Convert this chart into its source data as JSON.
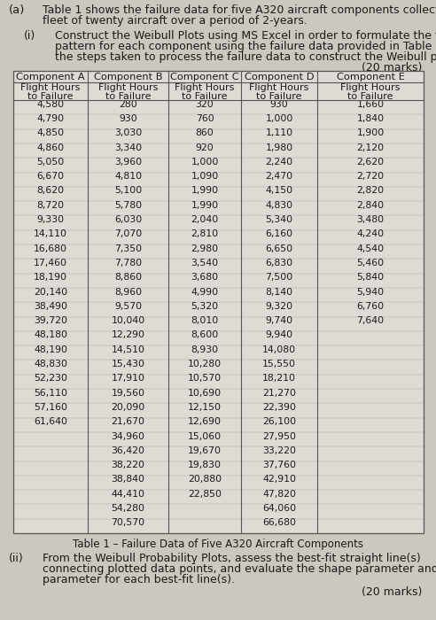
{
  "title_a": "(a)",
  "text_a1": "Table 1 shows the failure data for five A320 aircraft components collected from a",
  "text_a2": "fleet of twenty aircraft over a period of 2-years.",
  "sub_i": "(i)",
  "text_i1": "Construct the Weibull Plots using MS Excel in order to formulate the failure",
  "text_i2": "pattern for each component using the failure data provided in Table 1. Outline",
  "text_i3": "the steps taken to process the failure data to construct the Weibull plots.",
  "marks_i": "(20 marks)",
  "sub_ii": "(ii)",
  "text_ii1": "From the Weibull Probability Plots, assess the best-fit straight line(s)",
  "text_ii2": "connecting plotted data points, and evaluate the shape parameter and scale",
  "text_ii3": "parameter for each best-fit line(s).",
  "marks_ii": "(20 marks)",
  "table_caption": "Table 1 – Failure Data of Five A320 Aircraft Components",
  "col_headers": [
    "Component A",
    "Component B",
    "Component C",
    "Component D",
    "Component E"
  ],
  "col_A": [
    4580,
    4790,
    4850,
    4860,
    5050,
    6670,
    8620,
    8720,
    9330,
    14110,
    16680,
    17460,
    18190,
    20140,
    38490,
    39720,
    48180,
    48190,
    48830,
    52230,
    56110,
    57160,
    61640
  ],
  "col_B": [
    280,
    930,
    3030,
    3340,
    3960,
    4810,
    5100,
    5780,
    6030,
    7070,
    7350,
    7780,
    8860,
    8960,
    9570,
    10040,
    12290,
    14510,
    15430,
    17910,
    19560,
    20090,
    21670,
    34960,
    36420,
    38220,
    38840,
    44410,
    54280,
    70570
  ],
  "col_C": [
    320,
    760,
    860,
    920,
    1000,
    1090,
    1990,
    1990,
    2040,
    2810,
    2980,
    3540,
    3680,
    4990,
    5320,
    8010,
    8600,
    8930,
    10280,
    10570,
    10690,
    12150,
    12690,
    15060,
    19670,
    19830,
    20880,
    22850
  ],
  "col_D": [
    930,
    1000,
    1110,
    1980,
    2240,
    2470,
    4150,
    4830,
    5340,
    6160,
    6650,
    6830,
    7500,
    8140,
    9320,
    9740,
    9940,
    14080,
    15550,
    18210,
    21270,
    22390,
    26100,
    27950,
    33220,
    37760,
    42910,
    47820,
    64060,
    66680
  ],
  "col_E": [
    1660,
    1840,
    1900,
    2120,
    2620,
    2720,
    2820,
    2840,
    3480,
    4240,
    4540,
    5460,
    5840,
    5940,
    6760,
    7640
  ],
  "bg_color": "#cdc8bf",
  "table_bg": "#dedad4"
}
